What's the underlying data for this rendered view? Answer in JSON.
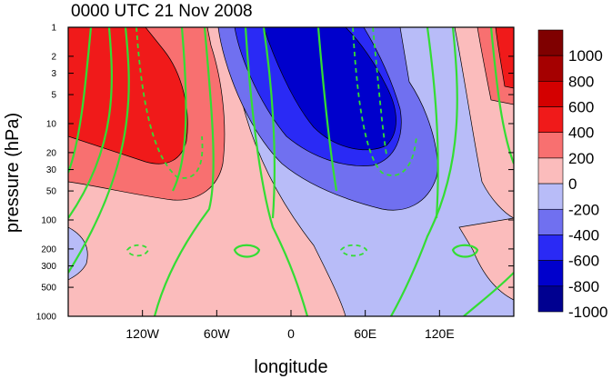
{
  "chart_data": {
    "type": "heatmap",
    "title": "0000 UTC 21 Nov 2008",
    "xlabel": "longitude",
    "ylabel": "pressure (hPa)",
    "x_axis": {
      "range": [
        -180,
        180
      ],
      "ticks": [
        -120,
        -60,
        0,
        60,
        120
      ],
      "tick_labels": [
        "120W",
        "60W",
        "0",
        "60E",
        "120E"
      ]
    },
    "y_axis": {
      "scale": "log",
      "reversed": true,
      "range": [
        1000,
        1
      ],
      "ticks": [
        1000,
        500,
        300,
        200,
        100,
        50,
        30,
        20,
        10,
        5,
        3,
        2,
        1
      ],
      "tick_labels": [
        "1000",
        "500",
        "300",
        "200",
        "100",
        "50",
        "30",
        "20",
        "10",
        "5",
        "3",
        "2",
        "1"
      ]
    },
    "colorbar": {
      "levels": [
        1000,
        800,
        600,
        400,
        200,
        0,
        -200,
        -400,
        -600,
        -800,
        -1000
      ],
      "labels": [
        "1000",
        "800",
        "600",
        "400",
        "200",
        "0",
        "-200",
        "-400",
        "-600",
        "-800",
        "-1000"
      ],
      "colors": [
        "#7f0000",
        "#a50000",
        "#d40000",
        "#f01a1a",
        "#f87070",
        "#fbbcbc",
        "#b8bcf8",
        "#7070f0",
        "#2a2af5",
        "#0000cc",
        "#000090"
      ]
    },
    "overlay_contour_color": "#33dd33"
  }
}
